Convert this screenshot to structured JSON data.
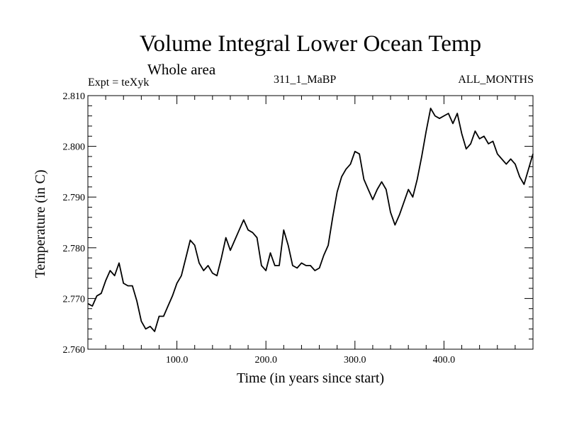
{
  "chart_data": {
    "type": "line",
    "title": "Volume Integral Lower Ocean Temp",
    "subtitle": "Whole area",
    "header_left": "Expt = teXyk",
    "header_center": "311_1_MaBP",
    "header_right": "ALL_MONTHS",
    "xlabel": "Time (in years since start)",
    "ylabel": "Temperature (in C)",
    "xlim": [
      0,
      500
    ],
    "ylim": [
      2.76,
      2.81
    ],
    "x_ticks": [
      100,
      200,
      300,
      400
    ],
    "x_tick_labels": [
      "100.0",
      "200.0",
      "300.0",
      "400.0"
    ],
    "y_ticks": [
      2.76,
      2.77,
      2.78,
      2.79,
      2.8,
      2.81
    ],
    "y_tick_labels": [
      "2.760",
      "2.770",
      "2.780",
      "2.790",
      "2.800",
      "2.810"
    ],
    "grid": false,
    "series": [
      {
        "color": "#000000",
        "x": [
          0,
          5,
          10,
          15,
          20,
          25,
          30,
          35,
          40,
          45,
          50,
          55,
          60,
          65,
          70,
          75,
          80,
          85,
          90,
          95,
          100,
          105,
          110,
          115,
          120,
          125,
          130,
          135,
          140,
          145,
          150,
          155,
          160,
          165,
          170,
          175,
          180,
          185,
          190,
          195,
          200,
          205,
          210,
          215,
          220,
          225,
          230,
          235,
          240,
          245,
          250,
          255,
          260,
          265,
          270,
          275,
          280,
          285,
          290,
          295,
          300,
          305,
          310,
          315,
          320,
          325,
          330,
          335,
          340,
          345,
          350,
          355,
          360,
          365,
          370,
          375,
          380,
          385,
          390,
          395,
          400,
          405,
          410,
          415,
          420,
          425,
          430,
          435,
          440,
          445,
          450,
          455,
          460,
          465,
          470,
          475,
          480,
          485,
          490,
          495,
          500
        ],
        "y": [
          2.769,
          2.7685,
          2.7705,
          2.771,
          2.7735,
          2.7755,
          2.7745,
          2.777,
          2.773,
          2.7725,
          2.7725,
          2.7695,
          2.7655,
          2.764,
          2.7645,
          2.7635,
          2.7665,
          2.7665,
          2.7685,
          2.7705,
          2.773,
          2.7745,
          2.778,
          2.7815,
          2.7805,
          2.777,
          2.7755,
          2.7765,
          2.775,
          2.7745,
          2.778,
          2.782,
          2.7795,
          2.7815,
          2.7835,
          2.7855,
          2.7835,
          2.783,
          2.782,
          2.7765,
          2.7755,
          2.779,
          2.7765,
          2.7765,
          2.7835,
          2.7805,
          2.7765,
          2.776,
          2.777,
          2.7765,
          2.7765,
          2.7755,
          2.776,
          2.7785,
          2.7805,
          2.786,
          2.791,
          2.794,
          2.7955,
          2.7965,
          2.799,
          2.7985,
          2.7935,
          2.7915,
          2.7895,
          2.7915,
          2.793,
          2.7915,
          2.787,
          2.7845,
          2.7865,
          2.789,
          2.7915,
          2.79,
          2.7935,
          2.798,
          2.803,
          2.8075,
          2.806,
          2.8055,
          2.806,
          2.8065,
          2.8045,
          2.8065,
          2.8025,
          2.7995,
          2.8005,
          2.803,
          2.8015,
          2.802,
          2.8005,
          2.801,
          2.7985,
          2.7975,
          2.7965,
          2.7975,
          2.7965,
          2.794,
          2.7925,
          2.7955,
          2.7985
        ]
      }
    ]
  }
}
